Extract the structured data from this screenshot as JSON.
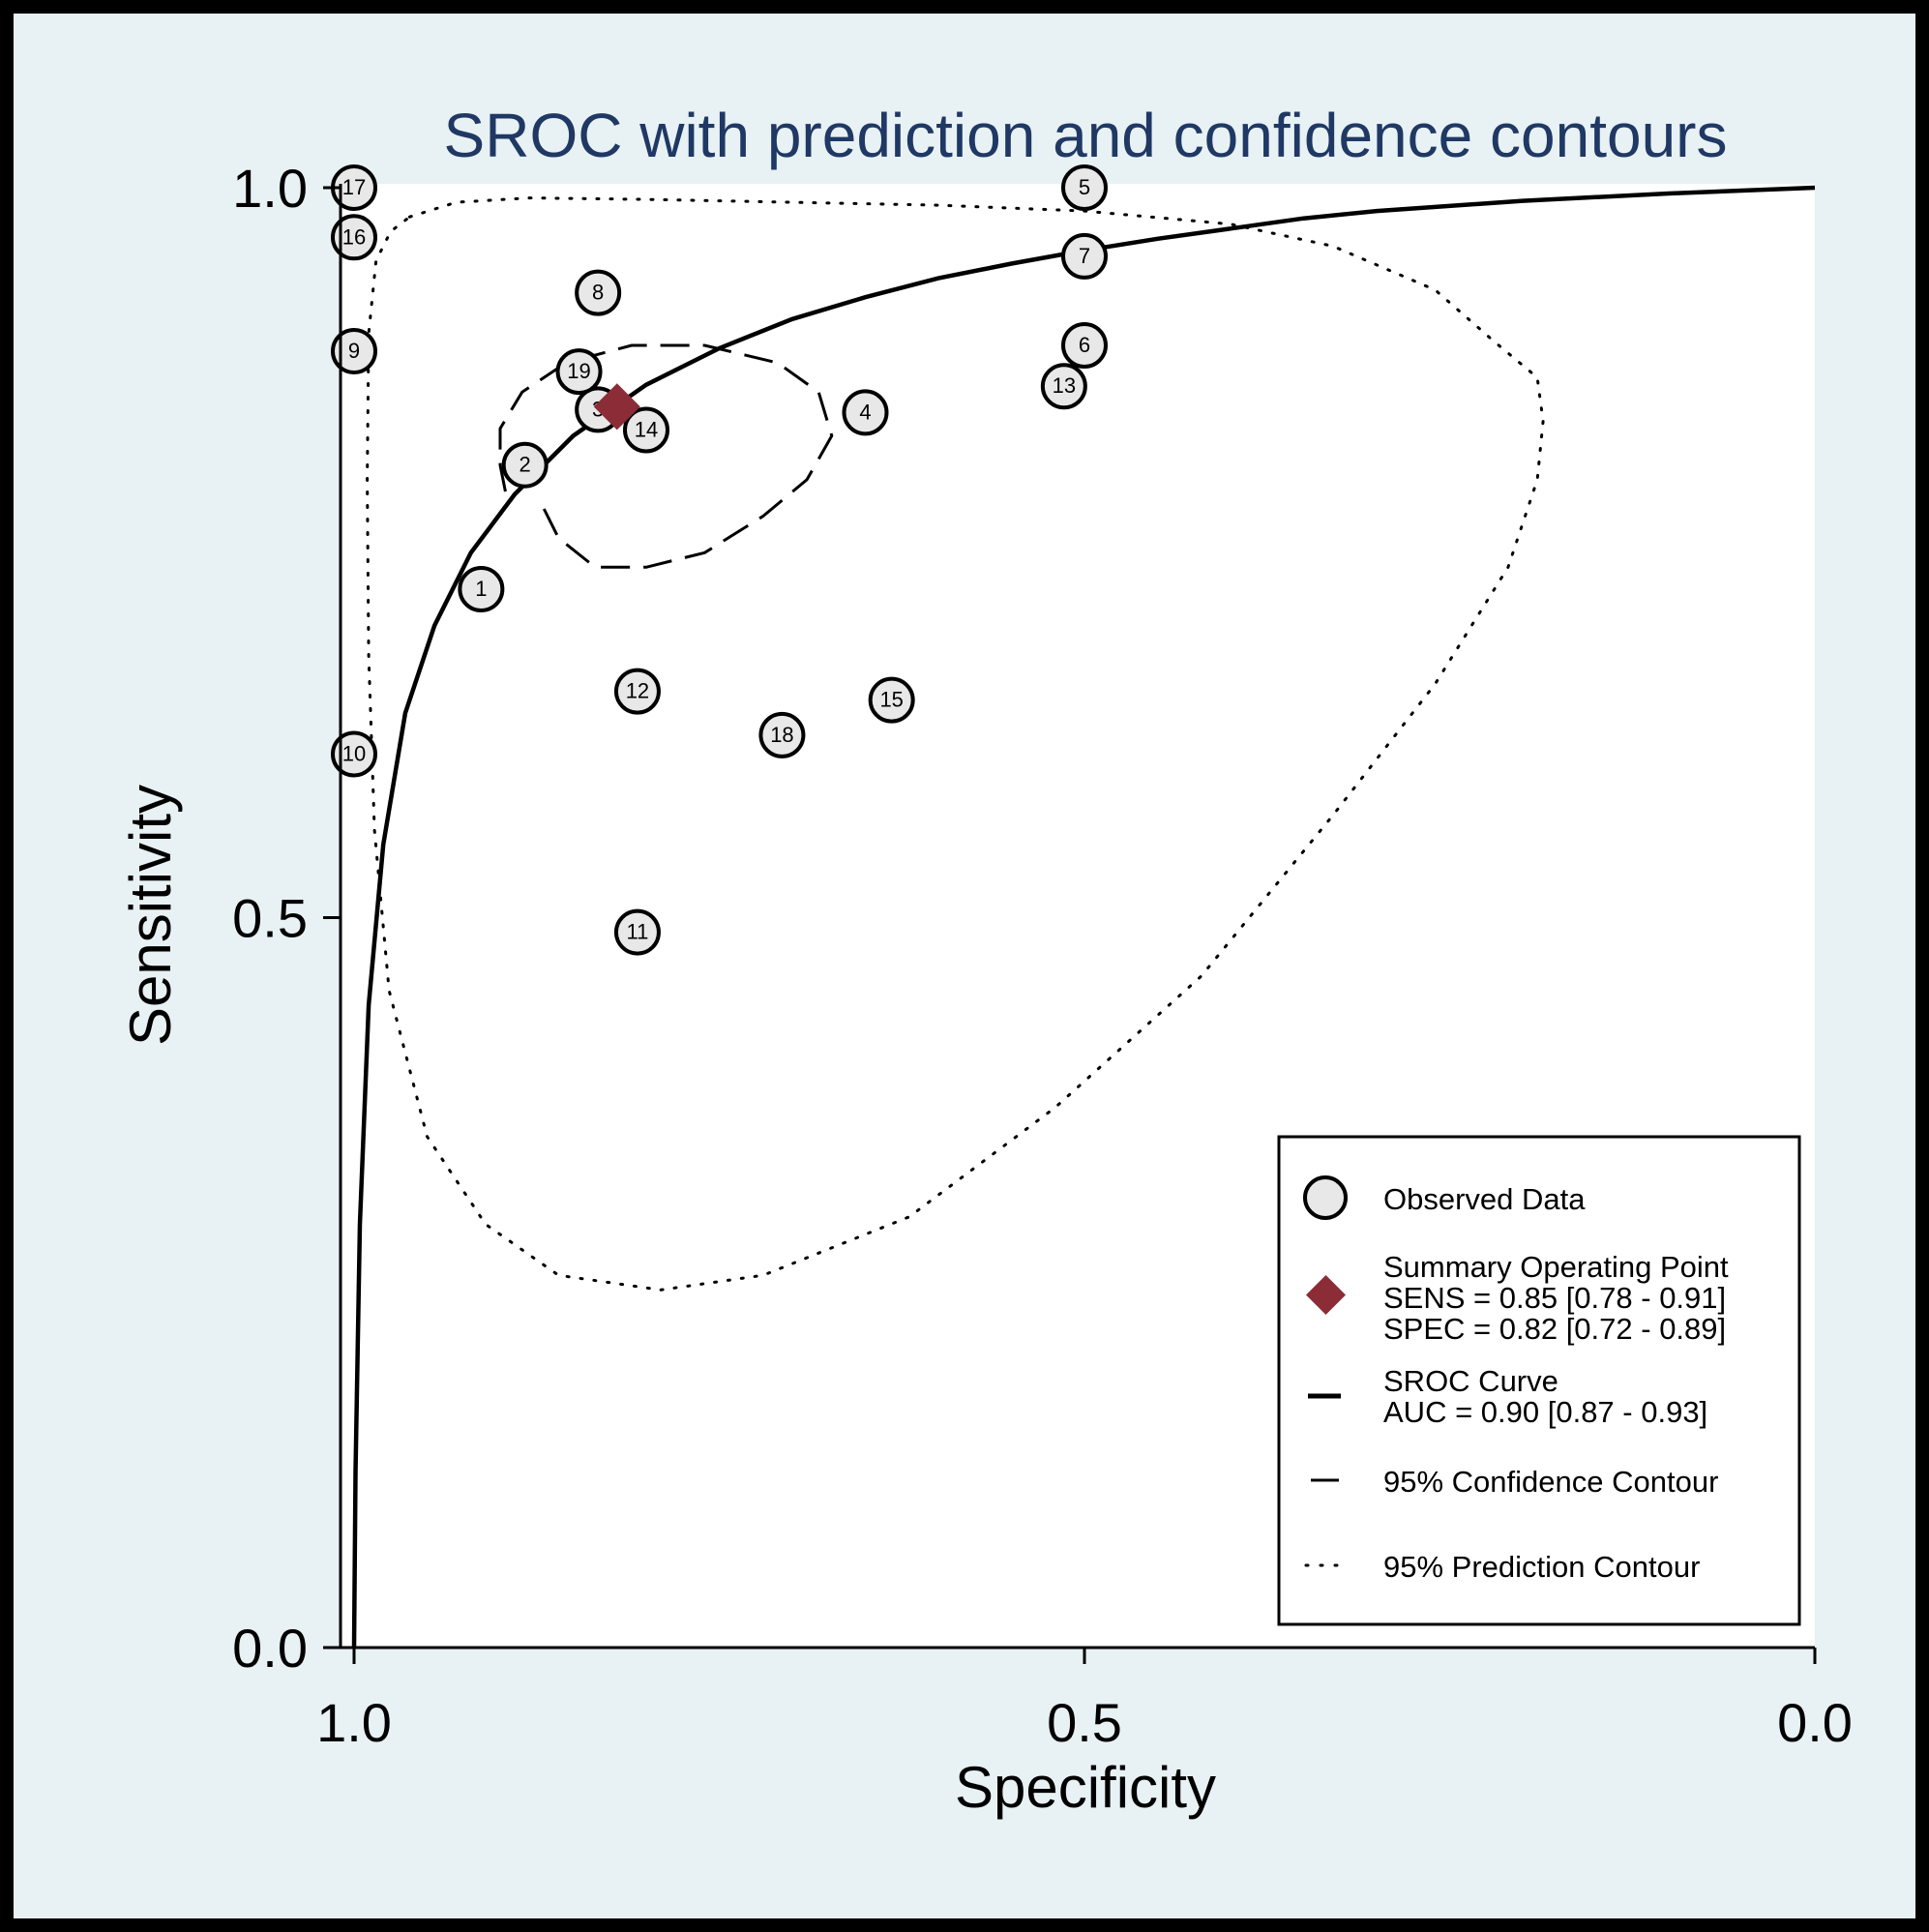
{
  "chart_data": {
    "type": "scatter",
    "title": "SROC with prediction and confidence contours",
    "xlabel": "Specificity",
    "ylabel": "Sensitivity",
    "xlim": [
      1.0,
      0.0
    ],
    "ylim": [
      0.0,
      1.0
    ],
    "x_reversed": true,
    "x_ticks": [
      {
        "value": 1.0,
        "label": "1.0"
      },
      {
        "value": 0.5,
        "label": "0.5"
      },
      {
        "value": 0.0,
        "label": "0.0"
      }
    ],
    "y_ticks": [
      {
        "value": 0.0,
        "label": "0.0"
      },
      {
        "value": 0.5,
        "label": "0.5"
      },
      {
        "value": 1.0,
        "label": "1.0"
      }
    ],
    "grid": false,
    "legend_position": "bottom-right",
    "observed": [
      {
        "id": "1",
        "spec": 0.913,
        "sens": 0.725
      },
      {
        "id": "2",
        "spec": 0.883,
        "sens": 0.81
      },
      {
        "id": "3",
        "spec": 0.833,
        "sens": 0.848
      },
      {
        "id": "4",
        "spec": 0.65,
        "sens": 0.846
      },
      {
        "id": "5",
        "spec": 0.5,
        "sens": 1.0
      },
      {
        "id": "6",
        "spec": 0.5,
        "sens": 0.892
      },
      {
        "id": "7",
        "spec": 0.5,
        "sens": 0.953
      },
      {
        "id": "8",
        "spec": 0.833,
        "sens": 0.928
      },
      {
        "id": "9",
        "spec": 1.0,
        "sens": 0.888
      },
      {
        "id": "10",
        "spec": 1.0,
        "sens": 0.612
      },
      {
        "id": "11",
        "spec": 0.806,
        "sens": 0.49
      },
      {
        "id": "12",
        "spec": 0.806,
        "sens": 0.655
      },
      {
        "id": "13",
        "spec": 0.514,
        "sens": 0.864
      },
      {
        "id": "14",
        "spec": 0.8,
        "sens": 0.834
      },
      {
        "id": "15",
        "spec": 0.632,
        "sens": 0.649
      },
      {
        "id": "16",
        "spec": 1.0,
        "sens": 0.966
      },
      {
        "id": "17",
        "spec": 1.0,
        "sens": 1.0
      },
      {
        "id": "18",
        "spec": 0.707,
        "sens": 0.625
      },
      {
        "id": "19",
        "spec": 0.846,
        "sens": 0.874
      }
    ],
    "summary_point": {
      "spec": 0.82,
      "sens": 0.85
    },
    "sroc_curve": [
      [
        1.0,
        0.0
      ],
      [
        0.999,
        0.12
      ],
      [
        0.996,
        0.29
      ],
      [
        0.99,
        0.44
      ],
      [
        0.98,
        0.55
      ],
      [
        0.965,
        0.64
      ],
      [
        0.945,
        0.7
      ],
      [
        0.92,
        0.75
      ],
      [
        0.89,
        0.79
      ],
      [
        0.85,
        0.83
      ],
      [
        0.8,
        0.865
      ],
      [
        0.75,
        0.89
      ],
      [
        0.7,
        0.91
      ],
      [
        0.65,
        0.925
      ],
      [
        0.6,
        0.938
      ],
      [
        0.55,
        0.948
      ],
      [
        0.5,
        0.957
      ],
      [
        0.45,
        0.965
      ],
      [
        0.4,
        0.972
      ],
      [
        0.35,
        0.979
      ],
      [
        0.3,
        0.984
      ],
      [
        0.2,
        0.991
      ],
      [
        0.1,
        0.996
      ],
      [
        0.0,
        1.0
      ]
    ],
    "confidence_contour": [
      [
        0.87,
        0.78
      ],
      [
        0.86,
        0.76
      ],
      [
        0.835,
        0.74
      ],
      [
        0.8,
        0.74
      ],
      [
        0.76,
        0.75
      ],
      [
        0.72,
        0.775
      ],
      [
        0.69,
        0.8
      ],
      [
        0.673,
        0.83
      ],
      [
        0.682,
        0.86
      ],
      [
        0.71,
        0.88
      ],
      [
        0.76,
        0.892
      ],
      [
        0.81,
        0.892
      ],
      [
        0.855,
        0.88
      ],
      [
        0.885,
        0.86
      ],
      [
        0.9,
        0.835
      ],
      [
        0.9,
        0.81
      ],
      [
        0.895,
        0.785
      ]
    ],
    "prediction_contour": [
      [
        0.962,
        0.98
      ],
      [
        0.93,
        0.99
      ],
      [
        0.88,
        0.993
      ],
      [
        0.8,
        0.992
      ],
      [
        0.7,
        0.99
      ],
      [
        0.6,
        0.988
      ],
      [
        0.5,
        0.984
      ],
      [
        0.4,
        0.975
      ],
      [
        0.33,
        0.96
      ],
      [
        0.26,
        0.93
      ],
      [
        0.22,
        0.895
      ],
      [
        0.19,
        0.87
      ],
      [
        0.186,
        0.84
      ],
      [
        0.19,
        0.8
      ],
      [
        0.21,
        0.74
      ],
      [
        0.26,
        0.66
      ],
      [
        0.33,
        0.57
      ],
      [
        0.42,
        0.46
      ],
      [
        0.52,
        0.37
      ],
      [
        0.62,
        0.295
      ],
      [
        0.72,
        0.255
      ],
      [
        0.79,
        0.245
      ],
      [
        0.86,
        0.255
      ],
      [
        0.91,
        0.29
      ],
      [
        0.95,
        0.35
      ],
      [
        0.976,
        0.45
      ],
      [
        0.986,
        0.56
      ],
      [
        0.99,
        0.68
      ],
      [
        0.991,
        0.8
      ],
      [
        0.99,
        0.9
      ],
      [
        0.985,
        0.95
      ],
      [
        0.975,
        0.97
      ],
      [
        0.962,
        0.98
      ]
    ],
    "legend": {
      "observed_label": "Observed Data",
      "summary_label": "Summary Operating Point",
      "summary_sens": "SENS = 0.85 [0.78 - 0.91]",
      "summary_spec": "SPEC = 0.82 [0.72 - 0.89]",
      "sroc_label": "SROC Curve",
      "sroc_auc": "AUC = 0.90 [0.87 - 0.93]",
      "confidence_label": "95% Confidence Contour",
      "prediction_label": "95% Prediction Contour"
    },
    "colors": {
      "page_background": "#e8f1f3",
      "plot_background": "#ffffff",
      "title": "#1f3864",
      "summary_marker": "#8b2c36",
      "marker_fill": "#e8e8e8"
    }
  }
}
